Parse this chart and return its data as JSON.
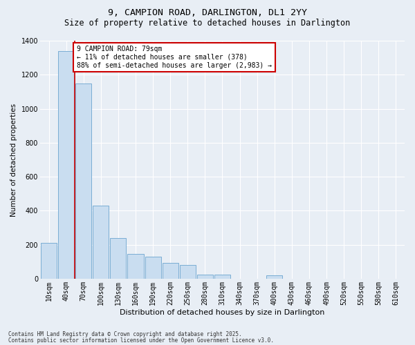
{
  "title1": "9, CAMPION ROAD, DARLINGTON, DL1 2YY",
  "title2": "Size of property relative to detached houses in Darlington",
  "xlabel": "Distribution of detached houses by size in Darlington",
  "ylabel": "Number of detached properties",
  "categories": [
    "10sqm",
    "40sqm",
    "70sqm",
    "100sqm",
    "130sqm",
    "160sqm",
    "190sqm",
    "220sqm",
    "250sqm",
    "280sqm",
    "310sqm",
    "340sqm",
    "370sqm",
    "400sqm",
    "430sqm",
    "460sqm",
    "490sqm",
    "520sqm",
    "550sqm",
    "580sqm",
    "610sqm"
  ],
  "values": [
    210,
    1340,
    1150,
    430,
    240,
    145,
    130,
    95,
    80,
    25,
    25,
    0,
    0,
    20,
    0,
    0,
    0,
    0,
    0,
    0,
    0
  ],
  "bar_color": "#c9ddf0",
  "bar_edge_color": "#7aadd4",
  "vline_color": "#cc0000",
  "vline_x_idx": 1.5,
  "ylim": [
    0,
    1400
  ],
  "yticks": [
    0,
    200,
    400,
    600,
    800,
    1000,
    1200,
    1400
  ],
  "annotation_text": "9 CAMPION ROAD: 79sqm\n← 11% of detached houses are smaller (378)\n88% of semi-detached houses are larger (2,983) →",
  "annotation_box_facecolor": "#ffffff",
  "annotation_box_edgecolor": "#cc0000",
  "footnote1": "Contains HM Land Registry data © Crown copyright and database right 2025.",
  "footnote2": "Contains public sector information licensed under the Open Government Licence v3.0.",
  "fig_facecolor": "#e8eef5",
  "plot_facecolor": "#e8eef5",
  "grid_color": "#ffffff",
  "title1_fontsize": 9.5,
  "title2_fontsize": 8.5,
  "xlabel_fontsize": 8,
  "ylabel_fontsize": 7.5,
  "tick_fontsize": 7,
  "annot_fontsize": 7
}
